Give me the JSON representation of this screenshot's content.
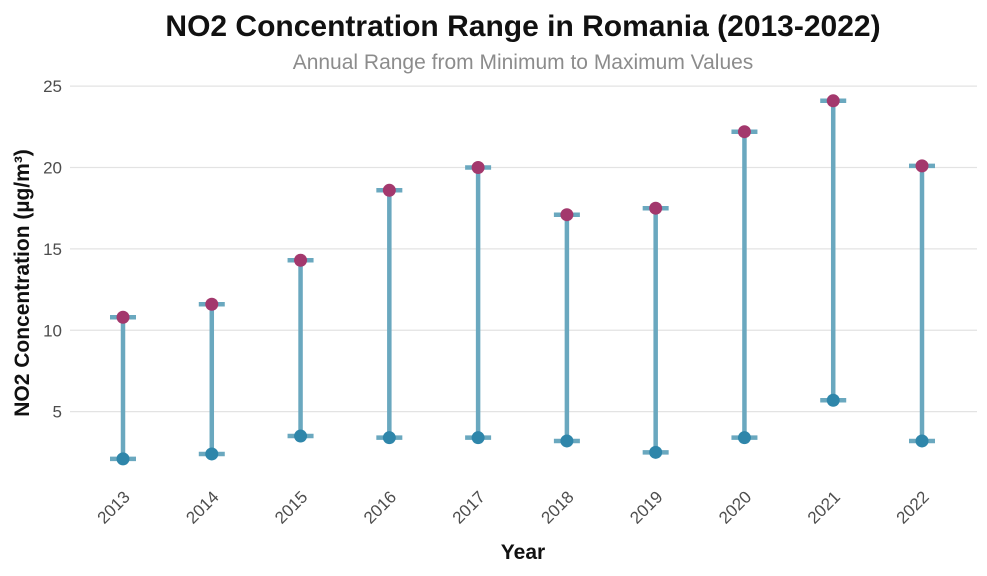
{
  "chart_data": {
    "type": "range",
    "title": "NO2 Concentration Range in Romania (2013-2022)",
    "subtitle": "Annual Range from Minimum to Maximum Values",
    "xlabel": "Year",
    "ylabel": "NO2 Concentration (µg/m³)",
    "categories": [
      "2013",
      "2014",
      "2015",
      "2016",
      "2017",
      "2018",
      "2019",
      "2020",
      "2021",
      "2022"
    ],
    "series": [
      {
        "name": "min",
        "values": [
          2.1,
          2.4,
          3.5,
          3.4,
          3.4,
          3.2,
          2.5,
          3.4,
          5.7,
          3.2
        ]
      },
      {
        "name": "max",
        "values": [
          10.8,
          11.6,
          14.3,
          18.6,
          20.0,
          17.1,
          17.5,
          22.2,
          24.1,
          20.1
        ]
      }
    ],
    "yticks": [
      5,
      10,
      15,
      20,
      25
    ],
    "ylim": [
      0.8,
      25.5
    ],
    "grid": true,
    "colors": {
      "range_line": "#6aa8bf",
      "min_point": "#2f86aa",
      "max_point": "#a3386d"
    }
  }
}
